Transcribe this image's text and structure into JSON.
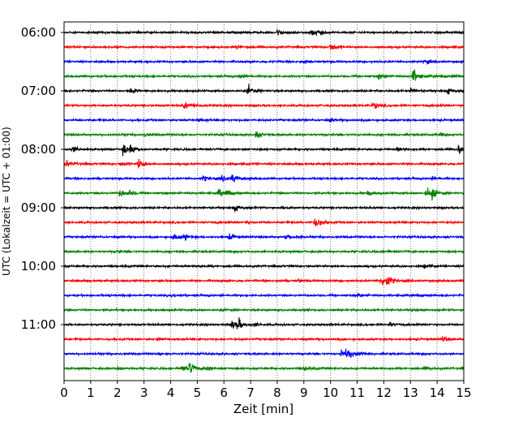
{
  "chart_data": {
    "type": "line",
    "title": "",
    "xlabel": "Zeit  [min]",
    "ylabel": "UTC (Lokalzeit = UTC + 01:00)",
    "xlim": [
      0,
      15
    ],
    "x_ticks": [
      0,
      1,
      2,
      3,
      4,
      5,
      6,
      7,
      8,
      9,
      10,
      11,
      12,
      13,
      14,
      15
    ],
    "x_tick_labels": [
      "0",
      "1",
      "2",
      "3",
      "4",
      "5",
      "6",
      "7",
      "8",
      "9",
      "10",
      "11",
      "12",
      "13",
      "14",
      "15"
    ],
    "y_tick_labels": [
      "06:00",
      "07:00",
      "08:00",
      "09:00",
      "10:00",
      "11:00"
    ],
    "y_ticks": [
      "06:00",
      "07:00",
      "08:00",
      "09:00",
      "10:00",
      "11:00"
    ],
    "grid": "vertical dotted at each minute",
    "trace_interval_min": 15,
    "color_cycle": [
      "#000000",
      "#ff0000",
      "#0000ff",
      "#008000"
    ],
    "traces": [
      {
        "start": "06:00",
        "color": "#000000",
        "events": [
          [
            8.0,
            0.5
          ],
          [
            9.3,
            0.6
          ],
          [
            9.5,
            0.4
          ]
        ]
      },
      {
        "start": "06:15",
        "color": "#ff0000",
        "events": [
          [
            10.0,
            0.6
          ],
          [
            6.5,
            0.25
          ]
        ]
      },
      {
        "start": "06:30",
        "color": "#0000ff",
        "events": [
          [
            13.5,
            0.4
          ],
          [
            9.0,
            0.25
          ]
        ]
      },
      {
        "start": "06:45",
        "color": "#008000",
        "events": [
          [
            6.6,
            0.5
          ],
          [
            11.8,
            0.6
          ],
          [
            13.1,
            1.2
          ],
          [
            14.6,
            0.25
          ]
        ]
      },
      {
        "start": "07:00",
        "color": "#000000",
        "events": [
          [
            2.5,
            0.5
          ],
          [
            6.9,
            0.9
          ],
          [
            13.0,
            0.4
          ],
          [
            14.4,
            0.45
          ]
        ]
      },
      {
        "start": "07:15",
        "color": "#ff0000",
        "events": [
          [
            4.5,
            0.7
          ],
          [
            11.6,
            0.6
          ],
          [
            4.9,
            0.3
          ]
        ]
      },
      {
        "start": "07:30",
        "color": "#0000ff",
        "events": [
          [
            5.0,
            0.2
          ],
          [
            10.0,
            0.2
          ]
        ]
      },
      {
        "start": "07:45",
        "color": "#008000",
        "events": [
          [
            7.2,
            0.6
          ],
          [
            14.1,
            0.3
          ],
          [
            3.0,
            0.2
          ]
        ]
      },
      {
        "start": "08:00",
        "color": "#000000",
        "events": [
          [
            0.3,
            0.5
          ],
          [
            2.2,
            0.9
          ],
          [
            2.5,
            0.6
          ],
          [
            14.8,
            0.8
          ],
          [
            12.5,
            0.3
          ]
        ]
      },
      {
        "start": "08:15",
        "color": "#ff0000",
        "events": [
          [
            0.1,
            0.5
          ],
          [
            2.8,
            1.0
          ],
          [
            2.1,
            0.3
          ]
        ]
      },
      {
        "start": "08:30",
        "color": "#0000ff",
        "events": [
          [
            5.2,
            0.5
          ],
          [
            6.3,
            0.8
          ],
          [
            5.9,
            0.4
          ],
          [
            13.8,
            0.3
          ]
        ]
      },
      {
        "start": "08:45",
        "color": "#008000",
        "events": [
          [
            2.1,
            0.6
          ],
          [
            2.4,
            0.5
          ],
          [
            5.8,
            0.6
          ],
          [
            6.1,
            0.5
          ],
          [
            11.4,
            0.4
          ],
          [
            13.6,
            0.9
          ],
          [
            13.8,
            0.7
          ]
        ]
      },
      {
        "start": "09:00",
        "color": "#000000",
        "events": [
          [
            6.4,
            0.5
          ],
          [
            8.2,
            0.25
          ]
        ]
      },
      {
        "start": "09:15",
        "color": "#ff0000",
        "events": [
          [
            9.4,
            1.2
          ],
          [
            6.8,
            0.2
          ]
        ]
      },
      {
        "start": "09:30",
        "color": "#0000ff",
        "events": [
          [
            4.1,
            0.6
          ],
          [
            4.5,
            0.5
          ],
          [
            6.2,
            0.5
          ],
          [
            8.3,
            0.5
          ],
          [
            8.7,
            0.3
          ]
        ]
      },
      {
        "start": "09:45",
        "color": "#008000",
        "events": [
          [
            2.0,
            0.15
          ],
          [
            12.0,
            0.15
          ]
        ]
      },
      {
        "start": "10:00",
        "color": "#000000",
        "events": [
          [
            5.0,
            0.2
          ],
          [
            13.5,
            0.2
          ]
        ]
      },
      {
        "start": "10:15",
        "color": "#ff0000",
        "events": [
          [
            11.9,
            0.9
          ],
          [
            12.1,
            0.8
          ],
          [
            8.8,
            0.2
          ]
        ]
      },
      {
        "start": "10:30",
        "color": "#0000ff",
        "events": [
          [
            4.0,
            0.2
          ],
          [
            11.0,
            0.2
          ]
        ]
      },
      {
        "start": "10:45",
        "color": "#008000",
        "events": [
          [
            6.0,
            0.15
          ],
          [
            13.0,
            0.15
          ]
        ]
      },
      {
        "start": "11:00",
        "color": "#000000",
        "events": [
          [
            6.3,
            0.6
          ],
          [
            6.5,
            0.9
          ],
          [
            7.1,
            0.3
          ],
          [
            12.2,
            0.3
          ]
        ]
      },
      {
        "start": "11:15",
        "color": "#ff0000",
        "events": [
          [
            14.2,
            0.4
          ],
          [
            3.5,
            0.2
          ]
        ]
      },
      {
        "start": "11:30",
        "color": "#0000ff",
        "events": [
          [
            10.4,
            0.7
          ],
          [
            10.6,
            0.9
          ],
          [
            11.1,
            0.3
          ],
          [
            3.6,
            0.2
          ]
        ]
      },
      {
        "start": "11:45",
        "color": "#008000",
        "events": [
          [
            4.4,
            0.6
          ],
          [
            4.7,
            1.0
          ],
          [
            5.3,
            0.5
          ],
          [
            9.0,
            0.3
          ],
          [
            2.0,
            0.25
          ],
          [
            13.5,
            0.25
          ]
        ]
      }
    ]
  }
}
